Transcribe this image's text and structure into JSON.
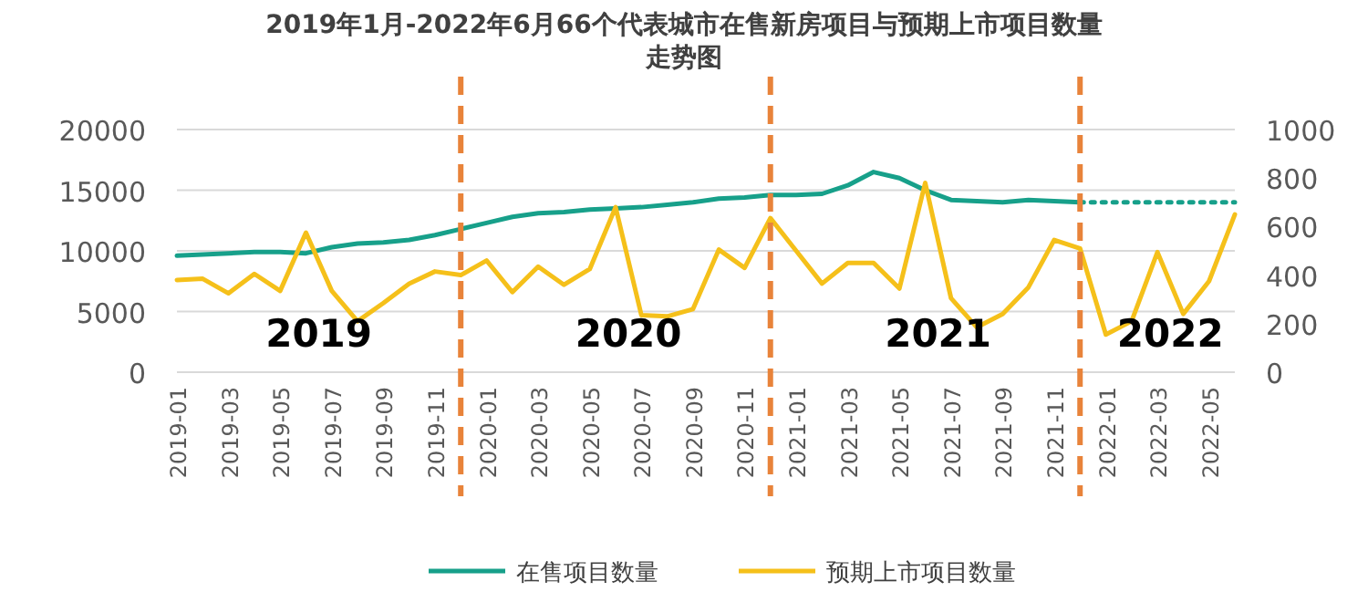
{
  "chart_data": {
    "type": "line",
    "title": "2019年1月-2022年6月66个代表城市在售新房项目与预期上市项目数量走势图",
    "x": [
      "2019-01",
      "2019-02",
      "2019-03",
      "2019-04",
      "2019-05",
      "2019-06",
      "2019-07",
      "2019-08",
      "2019-09",
      "2019-10",
      "2019-11",
      "2019-12",
      "2020-01",
      "2020-02",
      "2020-03",
      "2020-04",
      "2020-05",
      "2020-06",
      "2020-07",
      "2020-08",
      "2020-09",
      "2020-10",
      "2020-11",
      "2020-12",
      "2021-01",
      "2021-02",
      "2021-03",
      "2021-04",
      "2021-05",
      "2021-06",
      "2021-07",
      "2021-08",
      "2021-09",
      "2021-10",
      "2021-11",
      "2021-12",
      "2022-01",
      "2022-02",
      "2022-03",
      "2022-04",
      "2022-05",
      "2022-06"
    ],
    "series": [
      {
        "name": "在售项目数量",
        "color": "#17a08a",
        "values": [
          9600,
          9700,
          9800,
          9900,
          9900,
          9800,
          10300,
          10600,
          10700,
          10900,
          11300,
          11800,
          12300,
          12800,
          13100,
          13200,
          13400,
          13500,
          13600,
          13800,
          14000,
          14300,
          14400,
          14600,
          14600,
          14700,
          15400,
          16500,
          16000,
          15000,
          14200,
          14100,
          14000,
          14200,
          14100,
          14000,
          null,
          null,
          null,
          null,
          null,
          null
        ]
      },
      {
        "color": "#17a08a",
        "line_style": "dotted",
        "values": [
          null,
          null,
          null,
          null,
          null,
          null,
          null,
          null,
          null,
          null,
          null,
          null,
          null,
          null,
          null,
          null,
          null,
          null,
          null,
          null,
          null,
          null,
          null,
          null,
          null,
          null,
          null,
          null,
          null,
          null,
          null,
          null,
          null,
          null,
          null,
          14000,
          14000,
          14000,
          14000,
          14000,
          14000,
          14000
        ]
      },
      {
        "name": "预期上市项目数量",
        "color": "#f5c01a",
        "axis": "y2",
        "values": [
          380,
          385,
          325,
          405,
          335,
          575,
          335,
          210,
          285,
          365,
          415,
          400,
          460,
          330,
          435,
          360,
          425,
          680,
          235,
          230,
          260,
          505,
          430,
          635,
          500,
          365,
          450,
          450,
          345,
          780,
          305,
          185,
          240,
          350,
          545,
          510,
          155,
          210,
          495,
          240,
          375,
          650
        ]
      }
    ],
    "xlim": [
      "2019-01",
      "2022-06"
    ],
    "xticks": [
      "2019-01",
      "2019-03",
      "2019-05",
      "2019-07",
      "2019-09",
      "2019-11",
      "2020-01",
      "2020-03",
      "2020-05",
      "2020-07",
      "2020-09",
      "2020-11",
      "2021-01",
      "2021-03",
      "2021-05",
      "2021-07",
      "2021-09",
      "2021-11",
      "2022-01",
      "2022-03",
      "2022-05"
    ],
    "ylim": [
      0,
      20000
    ],
    "yticks": [
      0,
      5000,
      10000,
      15000,
      20000
    ],
    "y2lim": [
      0,
      1000
    ],
    "y2ticks": [
      0,
      200,
      400,
      600,
      800,
      1000
    ],
    "ref_lines": [
      {
        "axis": "x",
        "value": "2019-12",
        "color": "#e8833a",
        "line_style": "dashed"
      },
      {
        "axis": "x",
        "value": "2020-12",
        "color": "#e8833a",
        "line_style": "dashed"
      },
      {
        "axis": "x",
        "value": "2021-12",
        "color": "#e8833a",
        "line_style": "dashed"
      }
    ],
    "annotations": [
      "2019",
      "2020",
      "2021",
      "2022"
    ],
    "grid": "y",
    "legend": "bottom",
    "marker": "none"
  }
}
